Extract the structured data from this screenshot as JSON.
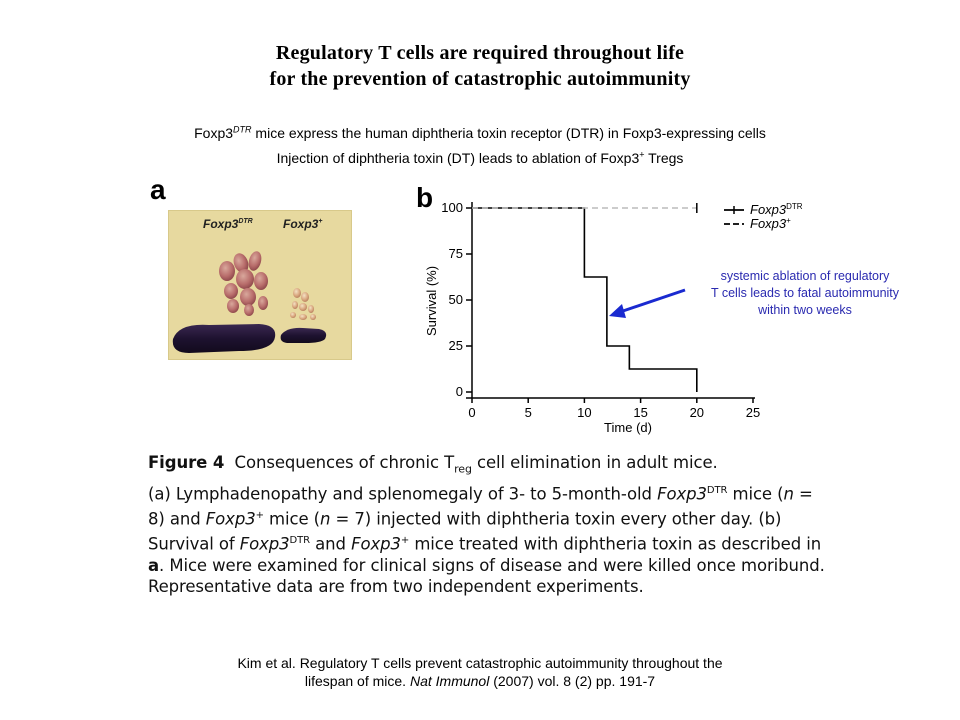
{
  "slide": {
    "title_line1": "Regulatory T cells are required throughout life",
    "title_line2": "for the prevention of catastrophic autoimmunity",
    "subtitle1_pre": "Foxp3",
    "subtitle1_sup": "DTR",
    "subtitle1_post": " mice express the human diphtheria toxin receptor (DTR) in Foxp3-expressing cells",
    "subtitle2_pre": "Injection of diphtheria toxin (DT) leads to ablation of Foxp3",
    "subtitle2_sup": "+",
    "subtitle2_post": " Tregs",
    "annotation_line1": "systemic ablation of regulatory",
    "annotation_line2": "T cells leads to fatal autoimmunity",
    "annotation_line3": "within two weeks",
    "reference_line1": "Kim et al. Regulatory T cells prevent catastrophic autoimmunity throughout the",
    "reference_line2_pre": "lifespan of mice. ",
    "reference_journal": "Nat Immunol",
    "reference_line2_post": " (2007) vol. 8 (2) pp. 191-7",
    "annotation_color": "#2a2ab0"
  },
  "panel_a": {
    "letter": "a",
    "label_dtr": "Foxp3",
    "label_dtr_sup": "DTR",
    "label_wt": "Foxp3",
    "label_wt_sup": "+"
  },
  "figure_caption": {
    "fig_label": "Figure 4",
    "heading_pre": "Consequences of chronic T",
    "heading_sub": "reg",
    "heading_post": " cell elimination in adult mice.",
    "a_pre": "(a) Lymphadenopathy and splenomegaly of 3- to 5-month-old ",
    "a_gene1": "Foxp3",
    "a_gene1_sup": "DTR",
    "a_mid1": " mice (",
    "a_n1": "n",
    "a_mid2": " = 8) and ",
    "a_gene2": "Foxp3",
    "a_gene2_sup": "+",
    "a_mid3": " mice (",
    "a_n2": "n",
    "a_post": " = 7) injected with diphtheria toxin every other day.",
    "b_pre": " (b) Survival of ",
    "b_gene1": "Foxp3",
    "b_gene1_sup": "DTR",
    "b_and": " and ",
    "b_gene2": "Foxp3",
    "b_gene2_sup": "+",
    "b_post": " mice treated with diphtheria toxin as described in ",
    "b_ref": "a",
    "b_end": ". Mice were examined for clinical signs of disease and were killed once moribund. Representative data are from two independent experiments."
  },
  "chart_data": {
    "type": "line",
    "panel_letter": "b",
    "xlabel": "Time (d)",
    "ylabel": "Survival (%)",
    "xlim": [
      0,
      25
    ],
    "ylim": [
      0,
      100
    ],
    "xticks": [
      "0",
      "5",
      "10",
      "15",
      "20",
      "25"
    ],
    "yticks": [
      "0",
      "25",
      "50",
      "75",
      "100"
    ],
    "grid": false,
    "legend_position": "top-right",
    "series": [
      {
        "name": "Foxp3",
        "name_sup": "DTR",
        "style": "solid",
        "color": "#000000",
        "x": [
          0,
          10,
          10,
          12,
          12,
          14,
          14,
          20,
          20
        ],
        "y": [
          100,
          100,
          62.5,
          62.5,
          25,
          25,
          12.5,
          12.5,
          0
        ]
      },
      {
        "name": "Foxp3",
        "name_sup": "+",
        "style": "dashed",
        "color": "#000000",
        "x": [
          0,
          20
        ],
        "y": [
          100,
          100
        ]
      }
    ]
  }
}
